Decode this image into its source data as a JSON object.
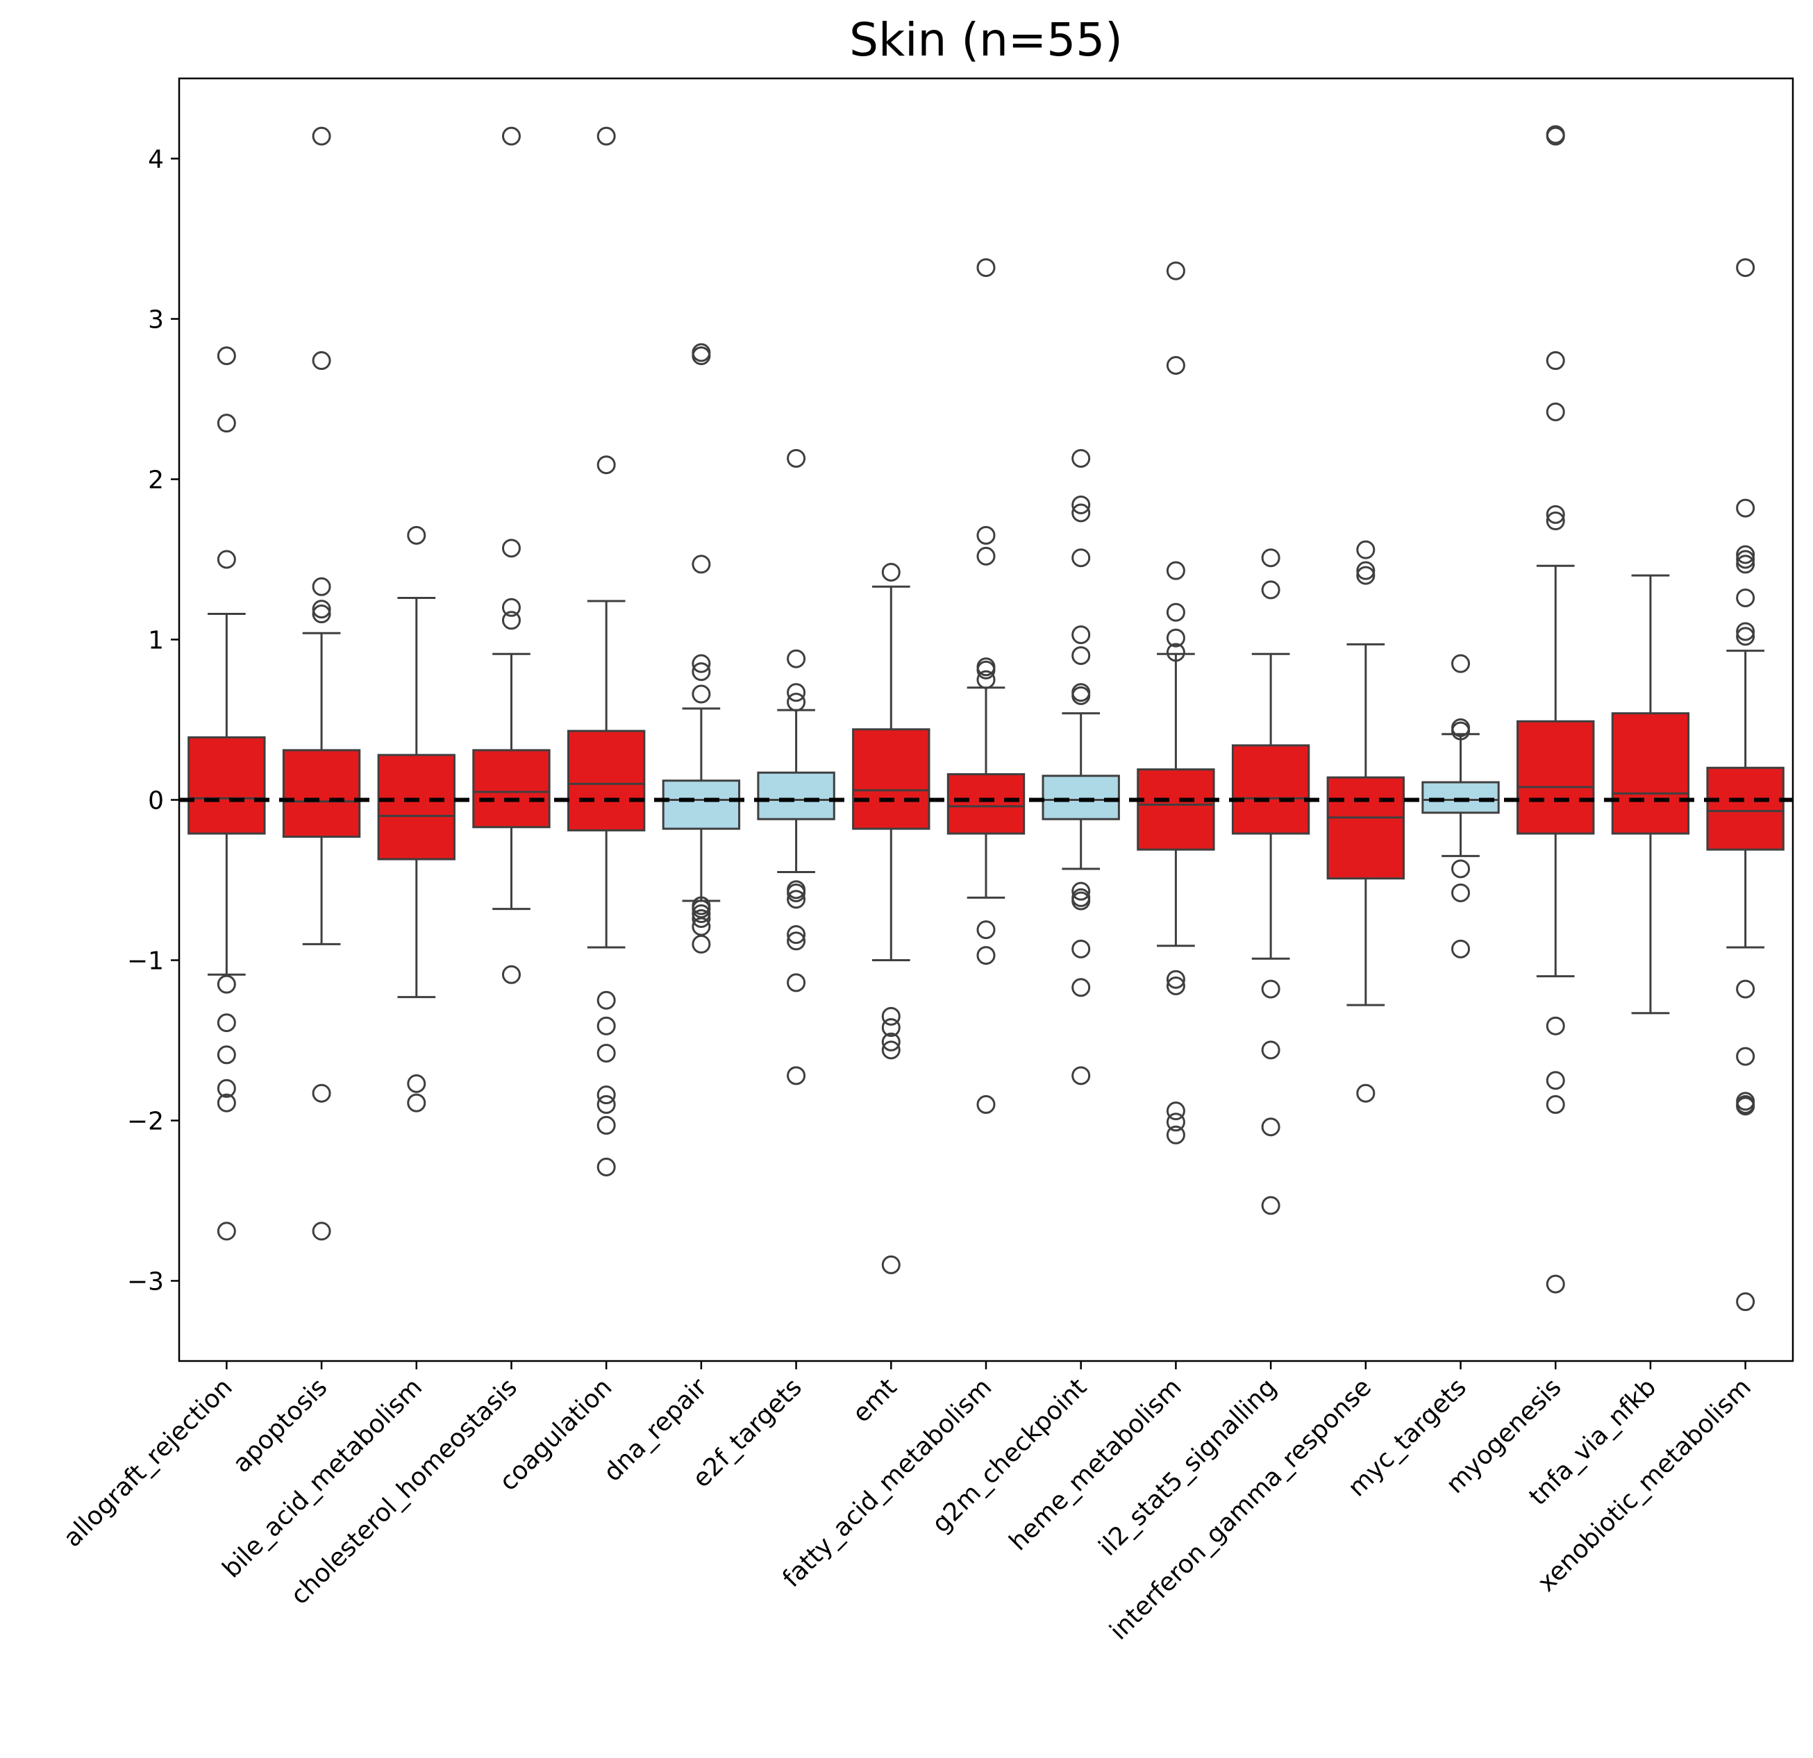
{
  "chart_data": {
    "type": "box",
    "title": "Skin (n=55)",
    "xlabel": "",
    "ylabel": "",
    "ylim": [
      -3.5,
      4.5
    ],
    "yticks": [
      -3,
      -2,
      -1,
      0,
      1,
      2,
      3,
      4
    ],
    "ytick_labels": [
      "−3",
      "−2",
      "−1",
      "0",
      "1",
      "2",
      "3",
      "4"
    ],
    "grid": false,
    "legend": "none",
    "reference_line": {
      "y": 0,
      "style": "dashed",
      "color": "#000000"
    },
    "colors": {
      "red": "#e31a1c",
      "lightblue": "#add8e6",
      "box_edge": "#3f3f3f"
    },
    "categories": [
      "allograft_rejection",
      "apoptosis",
      "bile_acid_metabolism",
      "cholesterol_homeostasis",
      "coagulation",
      "dna_repair",
      "e2f_targets",
      "emt",
      "fatty_acid_metabolism",
      "g2m_checkpoint",
      "heme_metabolism",
      "il2_stat5_signalling",
      "interferon_gamma_response",
      "myc_targets",
      "myogenesis",
      "tnfa_via_nfkb",
      "xenobiotic_metabolism"
    ],
    "boxes": [
      {
        "category": "allograft_rejection",
        "color": "red",
        "whislo": -1.09,
        "q1": -0.21,
        "med": 0.01,
        "q3": 0.39,
        "whishi": 1.16,
        "fliers": [
          2.77,
          2.35,
          1.5,
          -1.15,
          -1.39,
          -1.59,
          -1.8,
          -1.89,
          -2.69
        ]
      },
      {
        "category": "apoptosis",
        "color": "red",
        "whislo": -0.9,
        "q1": -0.23,
        "med": -0.01,
        "q3": 0.31,
        "whishi": 1.04,
        "fliers": [
          4.14,
          2.74,
          1.33,
          1.19,
          1.16,
          -1.83,
          -2.69
        ]
      },
      {
        "category": "bile_acid_metabolism",
        "color": "red",
        "whislo": -1.23,
        "q1": -0.37,
        "med": -0.1,
        "q3": 0.28,
        "whishi": 1.26,
        "fliers": [
          1.65,
          -1.77,
          -1.89
        ]
      },
      {
        "category": "cholesterol_homeostasis",
        "color": "red",
        "whislo": -0.68,
        "q1": -0.17,
        "med": 0.05,
        "q3": 0.31,
        "whishi": 0.91,
        "fliers": [
          4.14,
          1.57,
          1.2,
          1.12,
          -1.09
        ]
      },
      {
        "category": "coagulation",
        "color": "red",
        "whislo": -0.92,
        "q1": -0.19,
        "med": 0.1,
        "q3": 0.43,
        "whishi": 1.24,
        "fliers": [
          4.14,
          2.09,
          -1.25,
          -1.41,
          -1.58,
          -1.84,
          -1.9,
          -2.03,
          -2.29
        ]
      },
      {
        "category": "dna_repair",
        "color": "lightblue",
        "whislo": -0.63,
        "q1": -0.18,
        "med": 0.0,
        "q3": 0.12,
        "whishi": 0.57,
        "fliers": [
          2.79,
          2.77,
          1.47,
          0.85,
          0.8,
          0.66,
          -0.66,
          -0.68,
          -0.71,
          -0.74,
          -0.79,
          -0.9
        ]
      },
      {
        "category": "e2f_targets",
        "color": "lightblue",
        "whislo": -0.45,
        "q1": -0.12,
        "med": 0.0,
        "q3": 0.17,
        "whishi": 0.56,
        "fliers": [
          2.13,
          0.88,
          0.67,
          0.61,
          -0.56,
          -0.58,
          -0.62,
          -0.84,
          -0.88,
          -1.14,
          -1.72
        ]
      },
      {
        "category": "emt",
        "color": "red",
        "whislo": -1.0,
        "q1": -0.18,
        "med": 0.06,
        "q3": 0.44,
        "whishi": 1.33,
        "fliers": [
          1.42,
          -1.35,
          -1.42,
          -1.51,
          -1.56,
          -2.9
        ]
      },
      {
        "category": "fatty_acid_metabolism",
        "color": "red",
        "whislo": -0.61,
        "q1": -0.21,
        "med": -0.04,
        "q3": 0.16,
        "whishi": 0.7,
        "fliers": [
          3.32,
          1.65,
          1.52,
          0.83,
          0.81,
          0.75,
          -0.81,
          -0.97,
          -1.9
        ]
      },
      {
        "category": "g2m_checkpoint",
        "color": "lightblue",
        "whislo": -0.43,
        "q1": -0.12,
        "med": 0.0,
        "q3": 0.15,
        "whishi": 0.54,
        "fliers": [
          2.13,
          1.84,
          1.79,
          1.51,
          1.03,
          0.9,
          0.67,
          0.65,
          -0.57,
          -0.61,
          -0.63,
          -0.93,
          -1.17,
          -1.72
        ]
      },
      {
        "category": "heme_metabolism",
        "color": "red",
        "whislo": -0.91,
        "q1": -0.31,
        "med": -0.03,
        "q3": 0.19,
        "whishi": 0.91,
        "fliers": [
          3.3,
          2.71,
          1.43,
          1.17,
          1.01,
          0.92,
          -1.12,
          -1.16,
          -1.94,
          -2.01,
          -2.09
        ]
      },
      {
        "category": "il2_stat5_signalling",
        "color": "red",
        "whislo": -0.99,
        "q1": -0.21,
        "med": 0.01,
        "q3": 0.34,
        "whishi": 0.91,
        "fliers": [
          1.51,
          1.31,
          -1.18,
          -1.56,
          -2.04,
          -2.53
        ]
      },
      {
        "category": "interferon_gamma_response",
        "color": "red",
        "whislo": -1.28,
        "q1": -0.49,
        "med": -0.11,
        "q3": 0.14,
        "whishi": 0.97,
        "fliers": [
          1.56,
          1.43,
          1.4,
          -1.83
        ]
      },
      {
        "category": "myc_targets",
        "color": "lightblue",
        "whislo": -0.35,
        "q1": -0.08,
        "med": 0.0,
        "q3": 0.11,
        "whishi": 0.41,
        "fliers": [
          0.85,
          0.45,
          0.43,
          -0.43,
          -0.58,
          -0.93
        ]
      },
      {
        "category": "myogenesis",
        "color": "red",
        "whislo": -1.1,
        "q1": -0.21,
        "med": 0.08,
        "q3": 0.49,
        "whishi": 1.46,
        "fliers": [
          4.15,
          4.14,
          2.74,
          2.42,
          1.78,
          1.74,
          -1.41,
          -1.75,
          -1.9,
          -3.02
        ]
      },
      {
        "category": "tnfa_via_nfkb",
        "color": "red",
        "whislo": -1.33,
        "q1": -0.21,
        "med": 0.04,
        "q3": 0.54,
        "whishi": 1.4,
        "fliers": []
      },
      {
        "category": "xenobiotic_metabolism",
        "color": "red",
        "whislo": -0.92,
        "q1": -0.31,
        "med": -0.07,
        "q3": 0.2,
        "whishi": 0.93,
        "fliers": [
          3.32,
          1.82,
          1.53,
          1.5,
          1.47,
          1.26,
          1.05,
          1.02,
          -1.18,
          -1.6,
          -1.88,
          -1.9,
          -1.91,
          -3.13
        ]
      }
    ]
  }
}
